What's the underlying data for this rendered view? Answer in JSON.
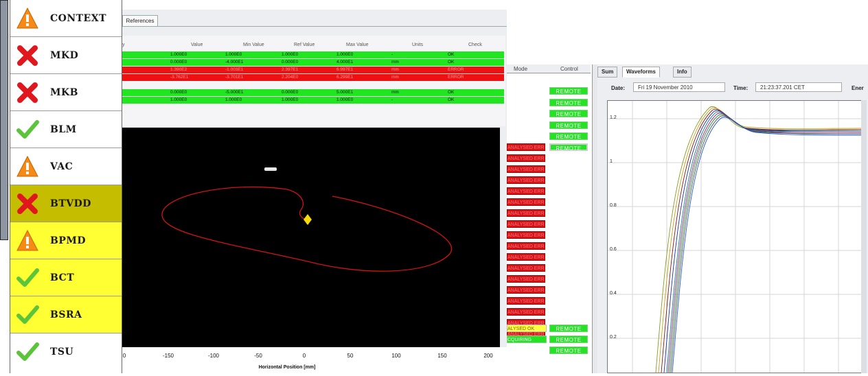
{
  "status_list": {
    "items": [
      {
        "label": "CONTEXT",
        "status": "warning",
        "icon": "warning-icon",
        "bg": "#ffffff"
      },
      {
        "label": "MKD",
        "status": "error",
        "icon": "error-x-icon",
        "bg": "#ffffff"
      },
      {
        "label": "MKB",
        "status": "error",
        "icon": "error-x-icon",
        "bg": "#ffffff"
      },
      {
        "label": "BLM",
        "status": "ok",
        "icon": "check-icon",
        "bg": "#ffffff"
      },
      {
        "label": "VAC",
        "status": "warning",
        "icon": "warning-icon",
        "bg": "#ffffff"
      },
      {
        "label": "BTVDD",
        "status": "error",
        "icon": "error-x-icon",
        "bg": "#c4bd00"
      },
      {
        "label": "BPMD",
        "status": "warning",
        "icon": "warning-icon",
        "bg": "#ffff33"
      },
      {
        "label": "BCT",
        "status": "ok",
        "icon": "check-icon",
        "bg": "#ffff33"
      },
      {
        "label": "BSRA",
        "status": "ok",
        "icon": "check-icon",
        "bg": "#ffff33"
      },
      {
        "label": "TSU",
        "status": "ok",
        "icon": "check-icon",
        "bg": "#ffffff"
      }
    ]
  },
  "middle": {
    "tab_label": "References",
    "table": {
      "headers": [
        "y",
        "Value",
        "Min Value",
        "Ref Value",
        "Max Value",
        "Units",
        "Check"
      ],
      "rows": [
        {
          "state": "ok",
          "cells": [
            "1.000E0",
            "1.000E0",
            "1.000E0",
            "1.000E0",
            "-",
            "OK"
          ]
        },
        {
          "state": "ok",
          "cells": [
            "0.000E0",
            "-4.000E1",
            "0.000E0",
            "4.000E1",
            "mm",
            "OK"
          ]
        },
        {
          "state": "error",
          "cells": [
            "1.390E2",
            "-1.003E1",
            "2.397E1",
            "6.997E1",
            "mm",
            "ERROR"
          ]
        },
        {
          "state": "error",
          "cells": [
            "-3.762E1",
            "-3.701E1",
            "2.204E0",
            "6.299E1",
            "mm",
            "ERROR"
          ]
        },
        {
          "state": "ok",
          "cells": [
            "0.000E0",
            "-5.000E1",
            "0.000E0",
            "5.000E1",
            "mm",
            "OK"
          ]
        },
        {
          "state": "ok",
          "cells": [
            "1.000E0",
            "1.000E0",
            "1.000E0",
            "1.000E0",
            "-",
            "OK"
          ]
        }
      ]
    },
    "plot": {
      "x_ticks": [
        "0",
        "-150",
        "-100",
        "-50",
        "0",
        "50",
        "100",
        "150",
        "200"
      ],
      "x_label": "Horizontal Position [mm]"
    }
  },
  "mode_panel": {
    "headers": {
      "mode": "Mode",
      "control": "Control"
    },
    "remote_label": "REMOTE",
    "mode_rows": [
      {
        "text": "ANALYSED ERR",
        "kind": "error"
      },
      {
        "text": "ANALYSED ERR",
        "kind": "error"
      },
      {
        "text": "ANALYSED ERR",
        "kind": "error"
      },
      {
        "text": "ANALYSED ERR",
        "kind": "error"
      },
      {
        "text": "ANALYSED ERR",
        "kind": "error"
      },
      {
        "text": "ANALYSED ERR",
        "kind": "error"
      },
      {
        "text": "ANALYSED ERR",
        "kind": "error"
      },
      {
        "text": "ANALYSED ERR",
        "kind": "error"
      },
      {
        "text": "ANALYSED ERR",
        "kind": "error"
      },
      {
        "text": "ANALYSED ERR",
        "kind": "error"
      },
      {
        "text": "ANALYSED ERR",
        "kind": "error"
      },
      {
        "text": "ANALYSED ERR",
        "kind": "error"
      },
      {
        "text": "ANALYSED ERR",
        "kind": "error"
      },
      {
        "text": "ANALYSED ERR",
        "kind": "error"
      },
      {
        "text": "ANALYSED ERR",
        "kind": "error"
      },
      {
        "text": "ANALYSED ERR",
        "kind": "error"
      },
      {
        "text": "ANALYSED ERR",
        "kind": "error"
      },
      {
        "text": "ANALYSED ERR",
        "kind": "error"
      },
      {
        "text": "ALYSED OK",
        "kind": "ok-yellow"
      },
      {
        "text": "CQUIRING",
        "kind": "acquiring"
      }
    ]
  },
  "right": {
    "tabs": [
      "Sum",
      "Waveforms",
      "Info"
    ],
    "active_tab": "Waveforms",
    "date_label": "Date:",
    "date_value": "Fri 19 November 2010",
    "time_label": "Time:",
    "time_value": "21:23:37.201 CET",
    "extra_label": "Ener",
    "y_ticks": [
      "1.2",
      "1",
      "0.8",
      "0.6",
      "0.4",
      "0.2"
    ]
  },
  "colors": {
    "ok": "#1fe61f",
    "error": "#ee1111",
    "selected": "#c4bd00",
    "highlight": "#ffff33"
  }
}
